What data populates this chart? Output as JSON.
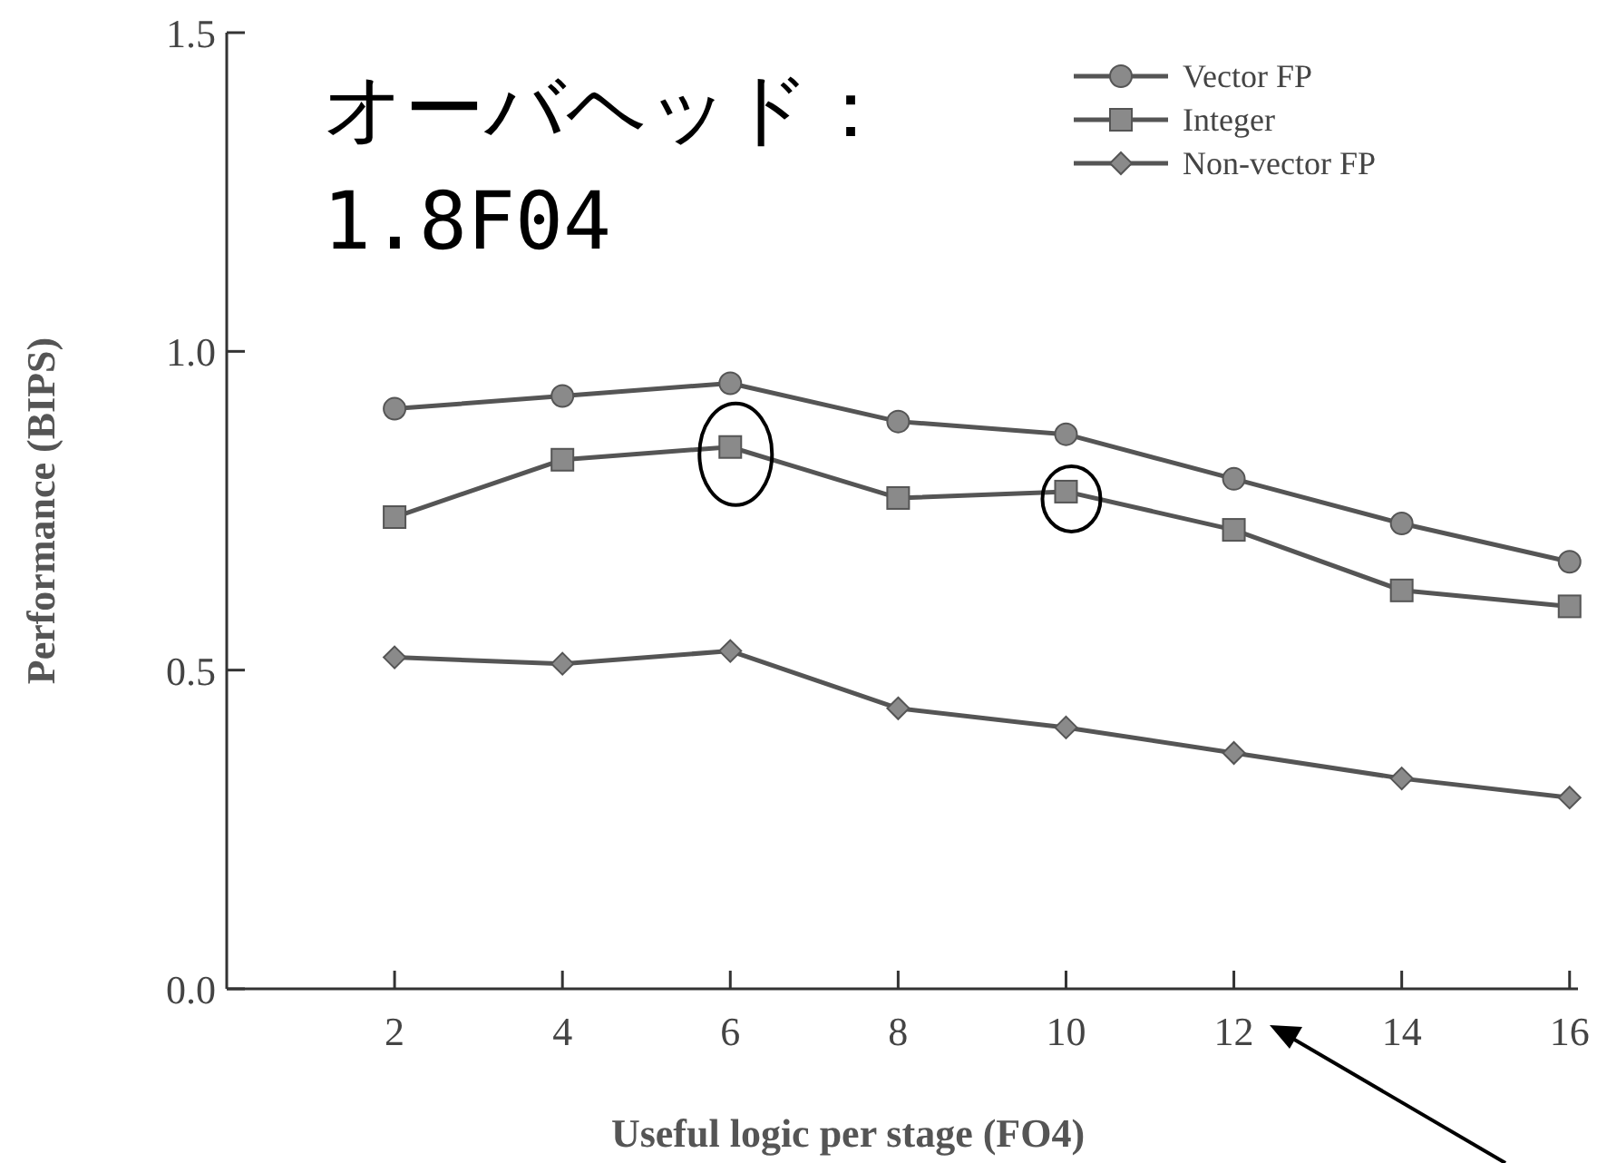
{
  "chart_data": {
    "type": "line",
    "xlabel": "Useful logic per stage (FO4)",
    "ylabel": "Performance (BIPS)",
    "x": [
      2,
      4,
      6,
      8,
      10,
      12,
      14,
      16
    ],
    "xlim": [
      0,
      16.1
    ],
    "xticks": [
      2,
      4,
      6,
      8,
      10,
      12,
      14,
      16
    ],
    "ylim": [
      0,
      1.5
    ],
    "yticks": [
      {
        "value": 0,
        "label": "0.0"
      },
      {
        "value": 0.5,
        "label": "0.5"
      },
      {
        "value": 1,
        "label": "1.0"
      },
      {
        "value": 1.5,
        "label": "1.5"
      }
    ],
    "series": [
      {
        "name": "Vector FP",
        "color": "#555555",
        "marker": "circle",
        "values": [
          0.91,
          0.93,
          0.95,
          0.89,
          0.87,
          0.8,
          0.73,
          0.67
        ]
      },
      {
        "name": "Integer",
        "color": "#555555",
        "marker": "square",
        "values": [
          0.74,
          0.83,
          0.85,
          0.77,
          0.78,
          0.72,
          0.625,
          0.6
        ]
      },
      {
        "name": "Non-vector FP",
        "color": "#555555",
        "marker": "diamond",
        "values": [
          0.52,
          0.51,
          0.53,
          0.44,
          0.41,
          0.37,
          0.33,
          0.3
        ]
      }
    ],
    "annotations": [
      "オーバヘッド：",
      "1.8F04"
    ],
    "legend": "top right",
    "grid": false,
    "line_style": "solid"
  }
}
